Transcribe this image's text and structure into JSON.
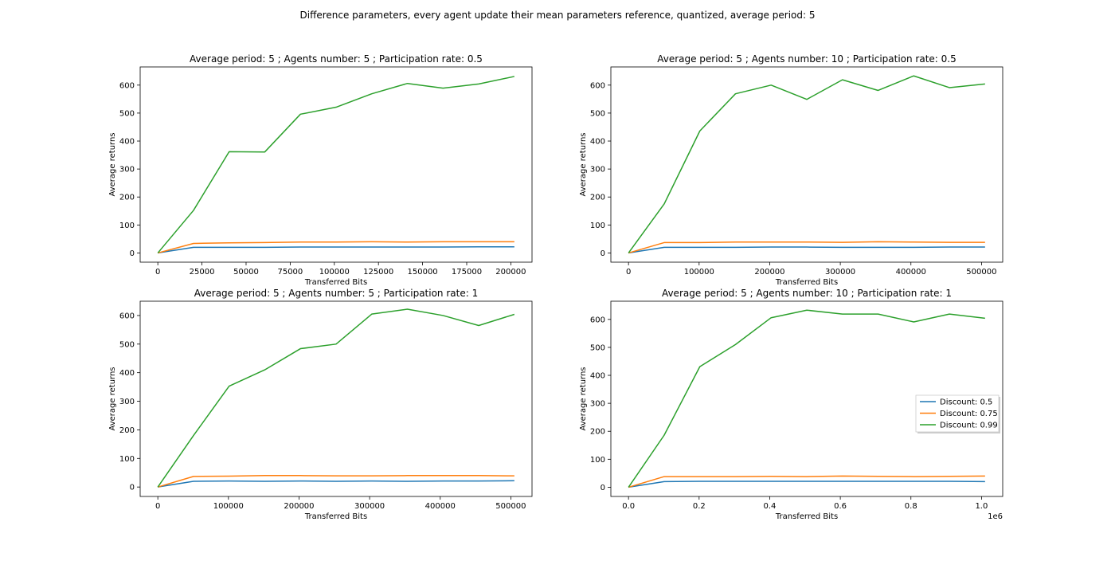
{
  "figure": {
    "title": "Difference parameters, every agent update their mean parameters reference, quantized, average period: 5"
  },
  "colors": {
    "series": [
      "#1f77b4",
      "#ff7f0e",
      "#2ca02c"
    ]
  },
  "legend": {
    "placement": "center-right",
    "subplot": 3
  },
  "chart_data": [
    {
      "type": "line",
      "title": "Average period: 5 ; Agents number: 5 ; Participation rate: 0.5",
      "xlabel": "Transferred Bits",
      "ylabel": "Average returns",
      "xlim": [
        -10000,
        212000
      ],
      "ylim": [
        -33,
        665
      ],
      "xticks": [
        0,
        25000,
        50000,
        75000,
        100000,
        125000,
        150000,
        175000,
        200000
      ],
      "xtick_labels": [
        "0",
        "25000",
        "50000",
        "75000",
        "100000",
        "125000",
        "150000",
        "175000",
        "200000"
      ],
      "yticks": [
        0,
        100,
        200,
        300,
        400,
        500,
        600
      ],
      "ytick_labels": [
        "0",
        "100",
        "200",
        "300",
        "400",
        "500",
        "600"
      ],
      "x_offset_label": "",
      "x": [
        0,
        20200,
        40400,
        60600,
        80800,
        101000,
        121200,
        141400,
        161600,
        181800,
        202000
      ],
      "series": [
        {
          "name": "Discount: 0.5",
          "values": [
            0,
            20,
            20,
            20,
            21,
            21,
            21,
            21,
            21,
            22,
            22
          ]
        },
        {
          "name": "Discount: 0.75",
          "values": [
            0,
            34,
            36,
            37,
            39,
            39,
            40,
            39,
            40,
            40,
            40
          ]
        },
        {
          "name": "Discount: 0.99",
          "values": [
            0,
            152,
            362,
            361,
            496,
            521,
            569,
            606,
            589,
            604,
            631
          ]
        }
      ]
    },
    {
      "type": "line",
      "title": "Average period: 5 ; Agents number: 10 ; Participation rate: 0.5",
      "xlabel": "Transferred Bits",
      "ylabel": "Average returns",
      "xlim": [
        -25000,
        530000
      ],
      "ylim": [
        -33,
        665
      ],
      "xticks": [
        0,
        100000,
        200000,
        300000,
        400000,
        500000
      ],
      "xtick_labels": [
        "0",
        "100000",
        "200000",
        "300000",
        "400000",
        "500000"
      ],
      "yticks": [
        0,
        100,
        200,
        300,
        400,
        500,
        600
      ],
      "ytick_labels": [
        "0",
        "100",
        "200",
        "300",
        "400",
        "500",
        "600"
      ],
      "x_offset_label": "",
      "x": [
        0,
        50500,
        101000,
        151500,
        202000,
        252500,
        303000,
        353500,
        404000,
        454500,
        505000
      ],
      "series": [
        {
          "name": "Discount: 0.5",
          "values": [
            0,
            20,
            20,
            20,
            21,
            21,
            20,
            20,
            20,
            21,
            21
          ]
        },
        {
          "name": "Discount: 0.75",
          "values": [
            0,
            37,
            37,
            39,
            39,
            39,
            38,
            40,
            39,
            38,
            38
          ]
        },
        {
          "name": "Discount: 0.99",
          "values": [
            0,
            175,
            436,
            569,
            600,
            549,
            619,
            581,
            633,
            591,
            604
          ]
        }
      ]
    },
    {
      "type": "line",
      "title": "Average period: 5 ; Agents number: 5 ; Participation rate: 1",
      "xlabel": "Transferred Bits",
      "ylabel": "Average returns",
      "xlim": [
        -25000,
        530000
      ],
      "ylim": [
        -33,
        650
      ],
      "xticks": [
        0,
        100000,
        200000,
        300000,
        400000,
        500000
      ],
      "xtick_labels": [
        "0",
        "100000",
        "200000",
        "300000",
        "400000",
        "500000"
      ],
      "yticks": [
        0,
        100,
        200,
        300,
        400,
        500,
        600
      ],
      "ytick_labels": [
        "0",
        "100",
        "200",
        "300",
        "400",
        "500",
        "600"
      ],
      "x_offset_label": "",
      "x": [
        0,
        50500,
        101000,
        151500,
        202000,
        252500,
        303000,
        353500,
        404000,
        454500,
        505000
      ],
      "series": [
        {
          "name": "Discount: 0.5",
          "values": [
            0,
            20,
            21,
            20,
            21,
            20,
            21,
            20,
            21,
            21,
            22
          ]
        },
        {
          "name": "Discount: 0.75",
          "values": [
            0,
            37,
            38,
            40,
            40,
            39,
            39,
            40,
            40,
            40,
            39
          ]
        },
        {
          "name": "Discount: 0.99",
          "values": [
            0,
            180,
            353,
            410,
            484,
            500,
            605,
            622,
            600,
            565,
            604
          ]
        }
      ]
    },
    {
      "type": "line",
      "title": "Average period: 5 ; Agents number: 10 ; Participation rate: 1",
      "xlabel": "Transferred Bits",
      "ylabel": "Average returns",
      "xlim": [
        -0.05,
        1.06
      ],
      "ylim": [
        -33,
        665
      ],
      "xticks": [
        0,
        0.2,
        0.4,
        0.6,
        0.8,
        1.0
      ],
      "xtick_labels": [
        "0.0",
        "0.2",
        "0.4",
        "0.6",
        "0.8",
        "1.0"
      ],
      "yticks": [
        0,
        100,
        200,
        300,
        400,
        500,
        600
      ],
      "ytick_labels": [
        "0",
        "100",
        "200",
        "300",
        "400",
        "500",
        "600"
      ],
      "x_offset_label": "1e6",
      "x": [
        0,
        0.101,
        0.202,
        0.303,
        0.404,
        0.505,
        0.606,
        0.707,
        0.808,
        0.909,
        1.01
      ],
      "series": [
        {
          "name": "Discount: 0.5",
          "values": [
            0,
            20,
            21,
            21,
            21,
            21,
            21,
            21,
            21,
            21,
            20
          ]
        },
        {
          "name": "Discount: 0.75",
          "values": [
            0,
            38,
            38,
            38,
            39,
            38,
            40,
            39,
            38,
            39,
            40
          ]
        },
        {
          "name": "Discount: 0.99",
          "values": [
            0,
            186,
            431,
            510,
            606,
            633,
            619,
            619,
            591,
            619,
            604
          ]
        }
      ]
    }
  ]
}
